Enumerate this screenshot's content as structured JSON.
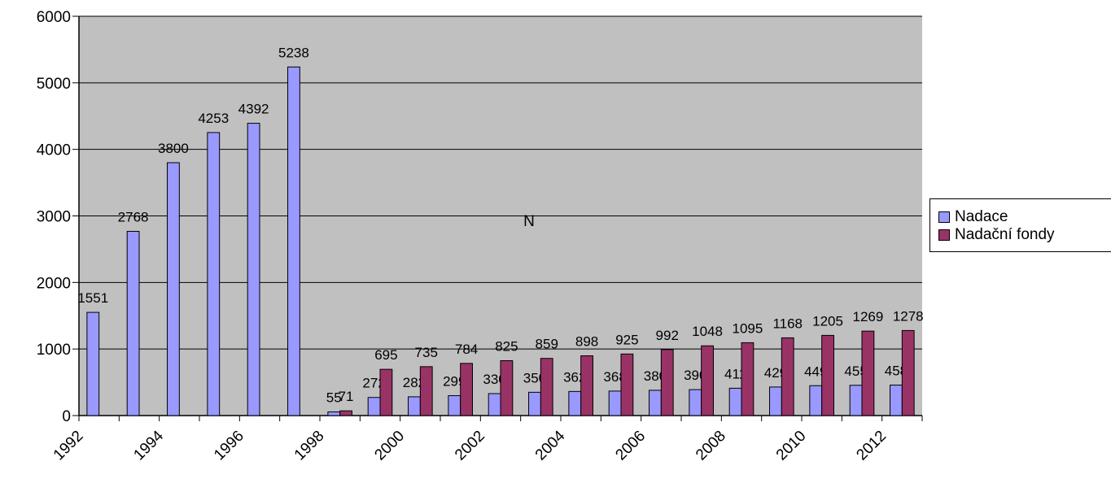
{
  "chart_data": {
    "type": "bar",
    "title": "",
    "xlabel": "",
    "ylabel": "",
    "annotation": "N",
    "categories": [
      "1992",
      "1993",
      "1994",
      "1995",
      "1996",
      "1997",
      "1998",
      "1999",
      "2000",
      "2001",
      "2002",
      "2003",
      "2004",
      "2005",
      "2006",
      "2007",
      "2008",
      "2009",
      "2010",
      "2011",
      "2012"
    ],
    "x_tick_labels": [
      "1992",
      "1994",
      "1996",
      "1998",
      "2000",
      "2002",
      "2004",
      "2006",
      "2008",
      "2010",
      "2012"
    ],
    "y_ticks": [
      0,
      1000,
      2000,
      3000,
      4000,
      5000,
      6000
    ],
    "ylim": [
      0,
      6000
    ],
    "grid": true,
    "legend_position": "right",
    "plot_background": "#c0c0c0",
    "series": [
      {
        "name": "Nadace",
        "color": "#9999ff",
        "values": [
          1551,
          2768,
          3800,
          4253,
          4392,
          5238,
          55,
          272,
          282,
          299,
          330,
          350,
          362,
          368,
          380,
          390,
          411,
          429,
          449,
          455,
          458
        ]
      },
      {
        "name": "Nadační fondy",
        "color": "#993366",
        "values": [
          null,
          null,
          null,
          null,
          null,
          null,
          71,
          695,
          735,
          784,
          825,
          859,
          898,
          925,
          992,
          1048,
          1095,
          1168,
          1205,
          1269,
          1278
        ]
      }
    ]
  }
}
